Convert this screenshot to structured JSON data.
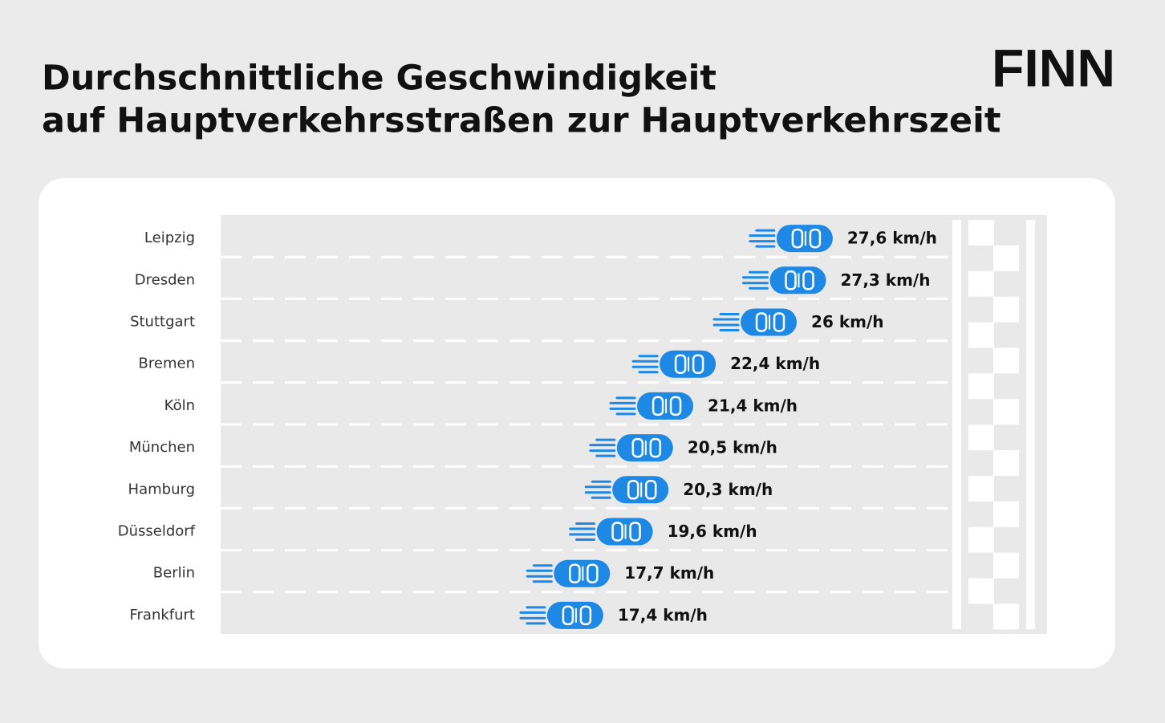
{
  "chart_data": {
    "type": "race",
    "title": [
      "Durchschnittliche Geschwindigkeit",
      "auf Hauptverkehrsstraßen zur Hauptverkehrszeit"
    ],
    "logo": "FINN",
    "categories": [
      "Leipzig",
      "Dresden",
      "Stuttgart",
      "Bremen",
      "Köln",
      "München",
      "Hamburg",
      "Düsseldorf",
      "Berlin",
      "Frankfurt"
    ],
    "values": [
      27.6,
      27.3,
      26,
      22.4,
      21.4,
      20.5,
      20.3,
      19.6,
      17.7,
      17.4
    ],
    "value_labels": [
      "27,6 km/h",
      "27,3 km/h",
      "26 km/h",
      "22,4 km/h",
      "21,4 km/h",
      "20,5 km/h",
      "20,3 km/h",
      "19,6 km/h",
      "17,7 km/h",
      "17,4 km/h"
    ],
    "color": "#1e88e5",
    "xlim": [
      0,
      33
    ]
  }
}
